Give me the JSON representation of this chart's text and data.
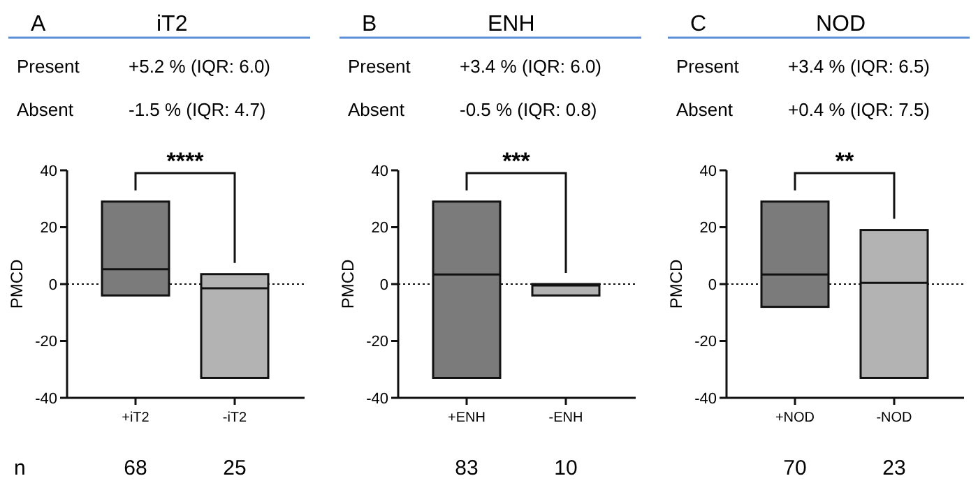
{
  "chart_data": [
    {
      "type": "box",
      "title": "iT2",
      "ylabel": "PMCD",
      "categories": [
        "+iT2",
        "-iT2"
      ],
      "colors": [
        "#7b7b7b",
        "#b3b3b3"
      ],
      "ylim": [
        -40,
        40
      ],
      "yticks": [
        -40,
        -20,
        0,
        20,
        40
      ],
      "boxes": [
        {
          "low": -4,
          "q1": -4,
          "median": 5.2,
          "q3": 29,
          "high": 29
        },
        {
          "low": -33,
          "q1": -33,
          "median": -1.5,
          "q3": 3.5,
          "high": 3.5
        }
      ],
      "ref_lines": [
        {
          "axis": "y",
          "value": 0,
          "line_style": "dotted"
        }
      ],
      "annotations": [
        "A",
        "Present",
        "+5.2 % (IQR: 6.0)",
        "Absent",
        "-1.5 % (IQR: 4.7)",
        "****",
        "68",
        "25",
        "n"
      ]
    },
    {
      "type": "box",
      "title": "ENH",
      "ylabel": "PMCD",
      "categories": [
        "+ENH",
        "-ENH"
      ],
      "colors": [
        "#7b7b7b",
        "#b3b3b3"
      ],
      "ylim": [
        -40,
        40
      ],
      "yticks": [
        -40,
        -20,
        0,
        20,
        40
      ],
      "boxes": [
        {
          "low": -33,
          "q1": -33,
          "median": 3.4,
          "q3": 29,
          "high": 29
        },
        {
          "low": -4,
          "q1": -4,
          "median": -0.5,
          "q3": 0,
          "high": 0
        }
      ],
      "ref_lines": [
        {
          "axis": "y",
          "value": 0,
          "line_style": "dotted"
        }
      ],
      "annotations": [
        "B",
        "Present",
        "+3.4 % (IQR: 6.0)",
        "Absent",
        "-0.5 % (IQR: 0.8)",
        "***",
        "83",
        "10"
      ]
    },
    {
      "type": "box",
      "title": "NOD",
      "ylabel": "PMCD",
      "categories": [
        "+NOD",
        "-NOD"
      ],
      "colors": [
        "#7b7b7b",
        "#b3b3b3"
      ],
      "ylim": [
        -40,
        40
      ],
      "yticks": [
        -40,
        -20,
        0,
        20,
        40
      ],
      "boxes": [
        {
          "low": -8,
          "q1": -8,
          "median": 3.4,
          "q3": 29,
          "high": 29
        },
        {
          "low": -33,
          "q1": -33,
          "median": 0.4,
          "q3": 19,
          "high": 19
        }
      ],
      "ref_lines": [
        {
          "axis": "y",
          "value": 0,
          "line_style": "dotted"
        }
      ],
      "annotations": [
        "C",
        "Present",
        "+3.4 % (IQR: 6.5)",
        "Absent",
        "+0.4 % (IQR: 7.5)",
        "**",
        "70",
        "23"
      ]
    }
  ]
}
